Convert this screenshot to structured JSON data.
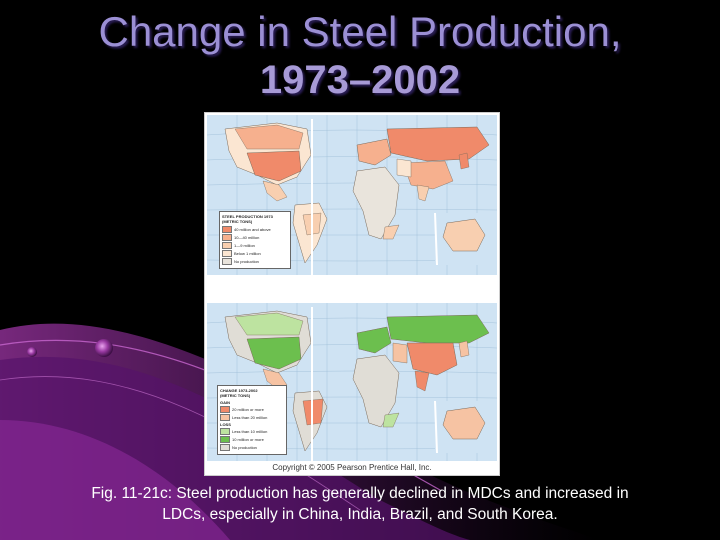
{
  "slide": {
    "title_line1": "Change in Steel Production,",
    "title_line2": "1973–2002",
    "caption_line1": "Fig. 11-21c: Steel production has generally declined in MDCs and increased in",
    "caption_line2": "LDCs, especially in China, India, Brazil, and South Korea.",
    "copyright": "Copyright © 2005 Pearson Prentice Hall, Inc."
  },
  "map1": {
    "legend_title_line1": "STEEL PRODUCTION 1973",
    "legend_title_line2": "(METRIC TONS)",
    "legend_items": [
      {
        "label": "40 million and above",
        "color": "#f08a6a"
      },
      {
        "label": "10—40 million",
        "color": "#f6b08e"
      },
      {
        "label": "1—9 million",
        "color": "#f8cfb0"
      },
      {
        "label": "Below 1 million",
        "color": "#fbe6d2"
      },
      {
        "label": "No production",
        "color": "#e9e4dc"
      }
    ]
  },
  "map2": {
    "legend_title_line1": "CHANGE 1973-2002",
    "legend_title_line2": "(METRIC TONS)",
    "gain_label": "GAIN",
    "loss_label": "LOSS",
    "gain_items": [
      {
        "label": "20 million or more",
        "color": "#f08a6a"
      },
      {
        "label": "Less than 20 million",
        "color": "#f6c3a3"
      }
    ],
    "loss_items": [
      {
        "label": "Less than 10 million",
        "color": "#bde3a0"
      },
      {
        "label": "10 million or more",
        "color": "#6cbf4e"
      }
    ],
    "no_production_label": "No production",
    "no_production_color": "#e0ddd6"
  },
  "colors": {
    "background": "#000000",
    "title": "#9b8fd4",
    "ocean": "#cfe3f3",
    "swoosh": "#7a2a8a"
  }
}
